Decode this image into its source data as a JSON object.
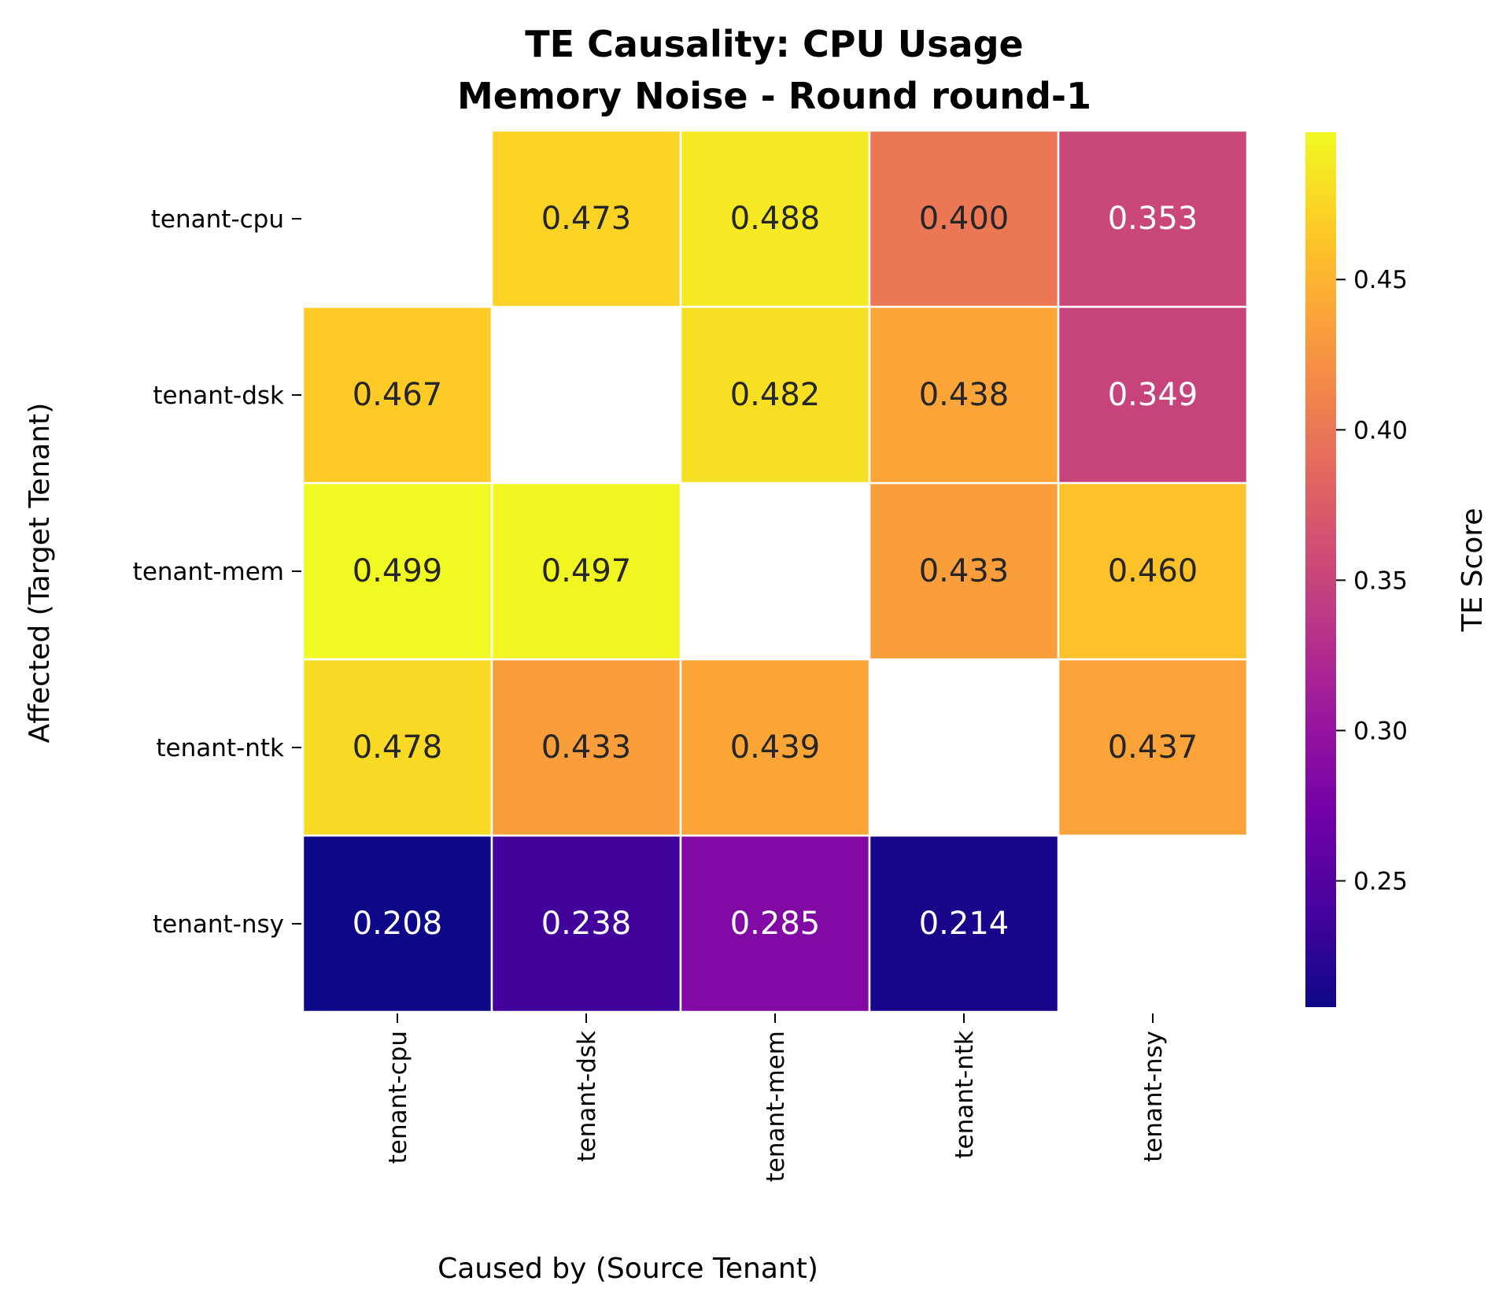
{
  "chart_data": {
    "type": "heatmap",
    "title": "TE Causality: CPU Usage",
    "subtitle": "Memory Noise - Round round-1",
    "xlabel": "Caused by (Source Tenant)",
    "ylabel": "Affected (Target Tenant)",
    "x_categories": [
      "tenant-cpu",
      "tenant-dsk",
      "tenant-mem",
      "tenant-ntk",
      "tenant-nsy"
    ],
    "y_categories": [
      "tenant-cpu",
      "tenant-dsk",
      "tenant-mem",
      "tenant-ntk",
      "tenant-nsy"
    ],
    "values": [
      [
        null,
        0.473,
        0.488,
        0.4,
        0.353
      ],
      [
        0.467,
        null,
        0.482,
        0.438,
        0.349
      ],
      [
        0.499,
        0.497,
        null,
        0.433,
        0.46
      ],
      [
        0.478,
        0.433,
        0.439,
        null,
        0.437
      ],
      [
        0.208,
        0.238,
        0.285,
        0.214,
        null
      ]
    ],
    "value_labels": [
      [
        "",
        "0.473",
        "0.488",
        "0.400",
        "0.353"
      ],
      [
        "0.467",
        "",
        "0.482",
        "0.438",
        "0.349"
      ],
      [
        "0.499",
        "0.497",
        "",
        "0.433",
        "0.460"
      ],
      [
        "0.478",
        "0.433",
        "0.439",
        "",
        "0.437"
      ],
      [
        "0.208",
        "0.238",
        "0.285",
        "0.214",
        ""
      ]
    ],
    "colormap": "plasma",
    "color_range": [
      0.208,
      0.499
    ],
    "colorbar": {
      "label": "TE Score",
      "ticks": [
        0.25,
        0.3,
        0.35,
        0.4,
        0.45
      ],
      "tick_labels": [
        "0.25",
        "0.30",
        "0.35",
        "0.40",
        "0.45"
      ]
    },
    "grid": false
  }
}
